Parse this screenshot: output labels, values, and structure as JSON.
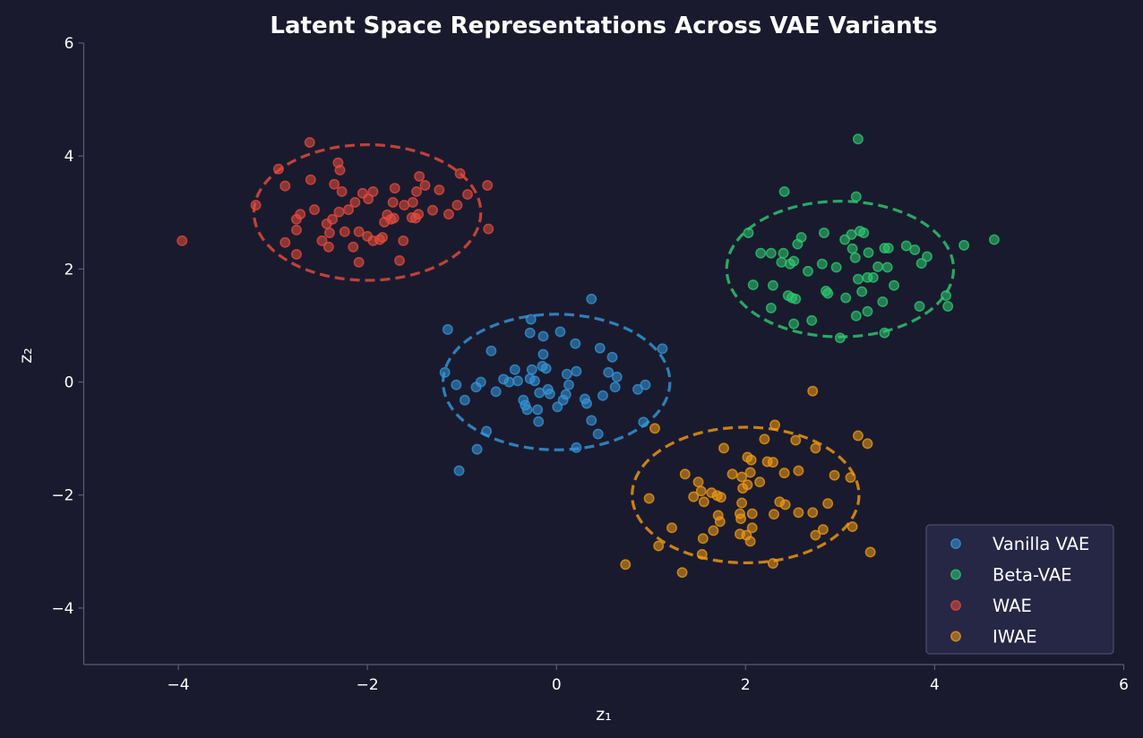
{
  "chart_data": {
    "type": "scatter",
    "title": "Latent Space Representations Across VAE Variants",
    "xlabel": "z₁",
    "ylabel": "z₂",
    "xlim": [
      -5,
      6
    ],
    "ylim": [
      -5,
      6
    ],
    "xticks": [
      -4,
      -2,
      0,
      2,
      4,
      6
    ],
    "yticks": [
      -4,
      -2,
      0,
      2,
      4,
      6
    ],
    "grid": false,
    "legend_position": "bottom-right",
    "background": "#1a1a2e",
    "series": [
      {
        "name": "Vanilla VAE",
        "color": "#3498db",
        "ellipse": {
          "center": [
            0,
            0
          ],
          "radius": [
            1.2,
            1.2
          ],
          "style": "dashed"
        },
        "points": [
          [
            -1.15,
            0.93
          ],
          [
            -1.18,
            0.17
          ],
          [
            -1.06,
            -0.05
          ],
          [
            -0.97,
            -0.32
          ],
          [
            -0.85,
            -0.09
          ],
          [
            -0.8,
            0.0
          ],
          [
            -0.69,
            0.55
          ],
          [
            -0.64,
            -0.17
          ],
          [
            -0.56,
            0.05
          ],
          [
            -0.5,
            0.0
          ],
          [
            -0.44,
            0.22
          ],
          [
            -0.41,
            0.02
          ],
          [
            -0.33,
            -0.41
          ],
          [
            -0.35,
            -0.32
          ],
          [
            -0.28,
            0.06
          ],
          [
            -0.26,
            0.22
          ],
          [
            -0.28,
            0.87
          ],
          [
            -0.27,
            1.11
          ],
          [
            -0.23,
            0.02
          ],
          [
            -0.19,
            -0.7
          ],
          [
            -0.18,
            -0.19
          ],
          [
            -0.15,
            0.28
          ],
          [
            -0.14,
            0.81
          ],
          [
            -0.14,
            0.49
          ],
          [
            -0.11,
            0.24
          ],
          [
            -0.09,
            -0.13
          ],
          [
            -0.07,
            -0.21
          ],
          [
            0.01,
            -0.44
          ],
          [
            0.04,
            0.89
          ],
          [
            0.07,
            -0.32
          ],
          [
            0.1,
            -0.22
          ],
          [
            0.13,
            -0.05
          ],
          [
            0.11,
            0.14
          ],
          [
            0.21,
            0.19
          ],
          [
            0.2,
            0.68
          ],
          [
            0.21,
            -1.16
          ],
          [
            0.3,
            -0.3
          ],
          [
            0.32,
            -0.38
          ],
          [
            0.37,
            -0.68
          ],
          [
            0.44,
            -0.92
          ],
          [
            0.46,
            0.6
          ],
          [
            0.49,
            -0.24
          ],
          [
            0.55,
            0.17
          ],
          [
            0.59,
            0.44
          ],
          [
            0.62,
            -0.09
          ],
          [
            0.64,
            0.09
          ],
          [
            0.37,
            1.47
          ],
          [
            0.86,
            -0.13
          ],
          [
            0.94,
            -0.05
          ],
          [
            0.92,
            -0.71
          ],
          [
            1.12,
            0.59
          ],
          [
            -0.74,
            -0.87
          ],
          [
            -0.84,
            -1.19
          ],
          [
            -1.03,
            -1.57
          ],
          [
            -0.31,
            -0.49
          ],
          [
            -0.2,
            -0.49
          ]
        ]
      },
      {
        "name": "Beta-VAE",
        "color": "#2ecc71",
        "ellipse": {
          "center": [
            3,
            2
          ],
          "radius": [
            1.2,
            1.2
          ],
          "style": "dashed"
        },
        "points": [
          [
            3.19,
            4.3
          ],
          [
            2.41,
            3.37
          ],
          [
            3.17,
            3.28
          ],
          [
            2.03,
            2.64
          ],
          [
            2.16,
            2.28
          ],
          [
            2.27,
            2.28
          ],
          [
            2.4,
            2.28
          ],
          [
            2.59,
            2.56
          ],
          [
            2.55,
            2.44
          ],
          [
            2.83,
            2.64
          ],
          [
            3.05,
            2.52
          ],
          [
            3.12,
            2.61
          ],
          [
            3.21,
            2.67
          ],
          [
            3.25,
            2.64
          ],
          [
            3.13,
            2.36
          ],
          [
            3.16,
            2.2
          ],
          [
            3.3,
            2.29
          ],
          [
            3.47,
            2.37
          ],
          [
            3.51,
            2.37
          ],
          [
            3.7,
            2.41
          ],
          [
            3.79,
            2.34
          ],
          [
            3.92,
            2.22
          ],
          [
            4.31,
            2.42
          ],
          [
            4.63,
            2.52
          ],
          [
            3.86,
            2.1
          ],
          [
            2.38,
            2.12
          ],
          [
            2.47,
            2.09
          ],
          [
            2.51,
            2.14
          ],
          [
            2.66,
            1.96
          ],
          [
            2.81,
            2.09
          ],
          [
            2.96,
            2.03
          ],
          [
            3.4,
            2.04
          ],
          [
            3.5,
            2.03
          ],
          [
            2.08,
            1.72
          ],
          [
            2.29,
            1.71
          ],
          [
            2.45,
            1.53
          ],
          [
            2.49,
            1.49
          ],
          [
            2.53,
            1.47
          ],
          [
            2.85,
            1.61
          ],
          [
            2.87,
            1.57
          ],
          [
            3.19,
            1.82
          ],
          [
            3.23,
            1.6
          ],
          [
            3.29,
            1.85
          ],
          [
            3.35,
            1.85
          ],
          [
            3.57,
            1.71
          ],
          [
            3.06,
            1.49
          ],
          [
            3.45,
            1.42
          ],
          [
            4.12,
            1.53
          ],
          [
            4.14,
            1.34
          ],
          [
            3.84,
            1.34
          ],
          [
            2.27,
            1.31
          ],
          [
            3.29,
            1.25
          ],
          [
            3.17,
            1.17
          ],
          [
            2.7,
            1.09
          ],
          [
            2.51,
            1.03
          ],
          [
            3.0,
            0.78
          ],
          [
            3.47,
            0.87
          ]
        ]
      },
      {
        "name": "WAE",
        "color": "#e74c3c",
        "ellipse": {
          "center": [
            -2,
            3
          ],
          "radius": [
            1.2,
            1.2
          ],
          "style": "dashed"
        },
        "points": [
          [
            -3.96,
            2.5
          ],
          [
            -3.18,
            3.13
          ],
          [
            -2.94,
            3.77
          ],
          [
            -2.87,
            3.47
          ],
          [
            -2.87,
            2.47
          ],
          [
            -2.75,
            2.88
          ],
          [
            -2.75,
            2.69
          ],
          [
            -2.75,
            2.26
          ],
          [
            -2.71,
            2.97
          ],
          [
            -2.61,
            4.24
          ],
          [
            -2.6,
            3.58
          ],
          [
            -2.56,
            3.05
          ],
          [
            -2.48,
            2.5
          ],
          [
            -2.43,
            2.8
          ],
          [
            -2.41,
            2.39
          ],
          [
            -2.4,
            2.64
          ],
          [
            -2.37,
            2.88
          ],
          [
            -2.35,
            3.5
          ],
          [
            -2.31,
            3.88
          ],
          [
            -2.3,
            3.01
          ],
          [
            -2.29,
            3.75
          ],
          [
            -2.27,
            3.37
          ],
          [
            -2.24,
            2.66
          ],
          [
            -2.2,
            3.05
          ],
          [
            -2.15,
            2.39
          ],
          [
            -2.13,
            3.18
          ],
          [
            -2.09,
            2.12
          ],
          [
            -2.09,
            2.66
          ],
          [
            -2.05,
            3.34
          ],
          [
            -2.0,
            2.58
          ],
          [
            -1.99,
            3.24
          ],
          [
            -1.94,
            3.37
          ],
          [
            -1.94,
            2.5
          ],
          [
            -1.87,
            2.52
          ],
          [
            -1.84,
            2.56
          ],
          [
            -1.82,
            2.83
          ],
          [
            -1.79,
            2.96
          ],
          [
            -1.75,
            2.88
          ],
          [
            -1.73,
            3.18
          ],
          [
            -1.72,
            2.9
          ],
          [
            -1.71,
            3.43
          ],
          [
            -1.66,
            2.15
          ],
          [
            -1.62,
            2.5
          ],
          [
            -1.61,
            3.13
          ],
          [
            -1.53,
            2.91
          ],
          [
            -1.52,
            3.18
          ],
          [
            -1.48,
            3.37
          ],
          [
            -1.49,
            2.9
          ],
          [
            -1.46,
            2.97
          ],
          [
            -1.45,
            3.64
          ],
          [
            -1.39,
            3.48
          ],
          [
            -1.31,
            3.04
          ],
          [
            -1.24,
            3.4
          ],
          [
            -1.14,
            2.97
          ],
          [
            -1.05,
            3.13
          ],
          [
            -1.02,
            3.69
          ],
          [
            -0.94,
            3.32
          ],
          [
            -0.73,
            3.48
          ],
          [
            -0.72,
            2.71
          ]
        ]
      },
      {
        "name": "IWAE",
        "color": "#f39c12",
        "ellipse": {
          "center": [
            2,
            -2
          ],
          "radius": [
            1.2,
            1.2
          ],
          "style": "dashed"
        },
        "points": [
          [
            2.71,
            -0.16
          ],
          [
            1.04,
            -0.82
          ],
          [
            3.19,
            -0.95
          ],
          [
            3.29,
            -1.09
          ],
          [
            2.31,
            -0.76
          ],
          [
            2.2,
            -1.01
          ],
          [
            2.53,
            -1.03
          ],
          [
            1.77,
            -1.17
          ],
          [
            2.74,
            -1.17
          ],
          [
            2.02,
            -1.33
          ],
          [
            2.06,
            -1.38
          ],
          [
            2.23,
            -1.41
          ],
          [
            2.29,
            -1.42
          ],
          [
            1.86,
            -1.63
          ],
          [
            1.96,
            -1.68
          ],
          [
            2.05,
            -1.6
          ],
          [
            2.41,
            -1.61
          ],
          [
            2.56,
            -1.57
          ],
          [
            2.94,
            -1.65
          ],
          [
            3.11,
            -1.69
          ],
          [
            1.36,
            -1.63
          ],
          [
            2.15,
            -1.77
          ],
          [
            2.02,
            -1.82
          ],
          [
            1.97,
            -1.88
          ],
          [
            1.5,
            -1.77
          ],
          [
            1.53,
            -1.93
          ],
          [
            1.64,
            -1.96
          ],
          [
            1.7,
            -2.01
          ],
          [
            1.74,
            -2.04
          ],
          [
            1.45,
            -2.03
          ],
          [
            1.56,
            -2.12
          ],
          [
            0.98,
            -2.06
          ],
          [
            1.96,
            -2.14
          ],
          [
            2.36,
            -2.12
          ],
          [
            2.42,
            -2.17
          ],
          [
            2.87,
            -2.15
          ],
          [
            1.94,
            -2.33
          ],
          [
            2.07,
            -2.33
          ],
          [
            2.3,
            -2.34
          ],
          [
            2.56,
            -2.31
          ],
          [
            2.71,
            -2.31
          ],
          [
            1.71,
            -2.36
          ],
          [
            1.95,
            -2.42
          ],
          [
            2.07,
            -2.58
          ],
          [
            1.22,
            -2.58
          ],
          [
            1.73,
            -2.47
          ],
          [
            1.94,
            -2.69
          ],
          [
            2.01,
            -2.71
          ],
          [
            1.55,
            -2.77
          ],
          [
            1.66,
            -2.63
          ],
          [
            2.74,
            -2.71
          ],
          [
            2.82,
            -2.61
          ],
          [
            3.13,
            -2.56
          ],
          [
            2.05,
            -2.82
          ],
          [
            1.08,
            -2.9
          ],
          [
            1.54,
            -3.05
          ],
          [
            2.29,
            -3.21
          ],
          [
            3.32,
            -3.01
          ],
          [
            0.73,
            -3.23
          ],
          [
            1.33,
            -3.37
          ]
        ]
      }
    ]
  }
}
